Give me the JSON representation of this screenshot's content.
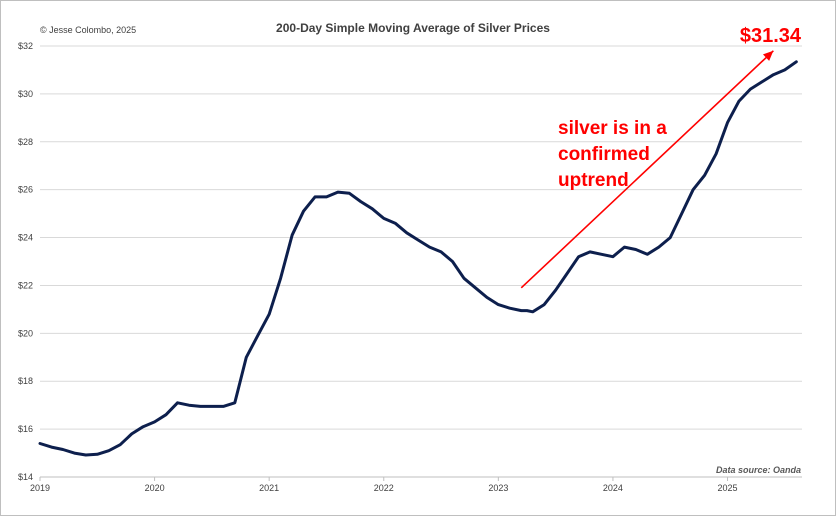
{
  "header": {
    "copyright": "© Jesse Colombo, 2025",
    "title": "200-Day Simple Moving Average of Silver Prices"
  },
  "footer": {
    "source": "Data source: Oanda"
  },
  "annotations": {
    "trend_lines": [
      "silver is in a",
      "confirmed",
      "uptrend"
    ],
    "price_label": "$31.34",
    "color": "#ff0000"
  },
  "chart_data": {
    "type": "line",
    "title": "200-Day Simple Moving Average of Silver Prices",
    "xlabel": "",
    "ylabel": "",
    "xlim": [
      2019.0,
      2025.65
    ],
    "ylim": [
      14,
      32
    ],
    "x_ticks": [
      2019,
      2020,
      2021,
      2022,
      2023,
      2024,
      2025
    ],
    "x_tick_labels": [
      "2019",
      "2020",
      "2021",
      "2022",
      "2023",
      "2024",
      "2025"
    ],
    "y_ticks": [
      14,
      16,
      18,
      20,
      22,
      24,
      26,
      28,
      30,
      32
    ],
    "y_tick_labels": [
      "$14",
      "$16",
      "$18",
      "$20",
      "$22",
      "$24",
      "$26",
      "$28",
      "$30",
      "$32"
    ],
    "grid": true,
    "legend": "none",
    "series": [
      {
        "color": "#0d1f4d",
        "x": [
          2019.0,
          2019.1,
          2019.2,
          2019.3,
          2019.4,
          2019.5,
          2019.6,
          2019.7,
          2019.8,
          2019.9,
          2020.0,
          2020.1,
          2020.2,
          2020.3,
          2020.4,
          2020.5,
          2020.55,
          2020.6,
          2020.7,
          2020.8,
          2020.9,
          2021.0,
          2021.1,
          2021.2,
          2021.3,
          2021.4,
          2021.5,
          2021.6,
          2021.7,
          2021.8,
          2021.9,
          2022.0,
          2022.1,
          2022.2,
          2022.3,
          2022.4,
          2022.5,
          2022.6,
          2022.7,
          2022.8,
          2022.9,
          2023.0,
          2023.1,
          2023.2,
          2023.25,
          2023.3,
          2023.4,
          2023.5,
          2023.6,
          2023.7,
          2023.8,
          2023.9,
          2024.0,
          2024.1,
          2024.2,
          2024.3,
          2024.4,
          2024.5,
          2024.6,
          2024.7,
          2024.8,
          2024.9,
          2025.0,
          2025.1,
          2025.2,
          2025.3,
          2025.4,
          2025.5,
          2025.6
        ],
        "y": [
          15.4,
          15.25,
          15.15,
          15.0,
          14.92,
          14.95,
          15.1,
          15.35,
          15.8,
          16.1,
          16.3,
          16.6,
          17.1,
          17.0,
          16.95,
          16.95,
          16.95,
          16.95,
          17.1,
          19.0,
          19.9,
          20.8,
          22.3,
          24.1,
          25.1,
          25.7,
          25.7,
          25.9,
          25.85,
          25.5,
          25.2,
          24.8,
          24.6,
          24.2,
          23.9,
          23.6,
          23.4,
          23.0,
          22.3,
          21.9,
          21.5,
          21.2,
          21.05,
          20.95,
          20.95,
          20.9,
          21.2,
          21.8,
          22.5,
          23.2,
          23.4,
          23.3,
          23.2,
          23.6,
          23.5,
          23.3,
          23.6,
          24.0,
          25.0,
          26.0,
          26.6,
          27.5,
          28.8,
          29.7,
          30.2,
          30.5,
          30.8,
          31.0,
          31.34
        ]
      }
    ],
    "trend_arrow": {
      "from": [
        2023.2,
        21.9
      ],
      "to": [
        2025.4,
        31.8
      ]
    }
  }
}
